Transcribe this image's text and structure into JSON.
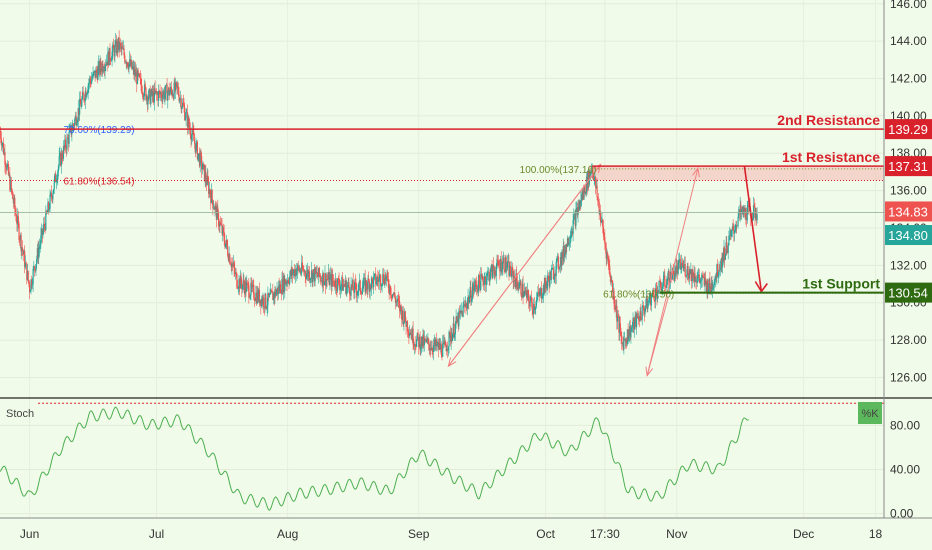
{
  "chart_data": {
    "type": "line",
    "x_dates": [
      "2020-05-25",
      "2020-06-01",
      "2020-06-08",
      "2020-06-15",
      "2020-06-22",
      "2020-06-29",
      "2020-07-06",
      "2020-07-13",
      "2020-07-20",
      "2020-07-27",
      "2020-08-03",
      "2020-08-10",
      "2020-08-17",
      "2020-08-24",
      "2020-08-31",
      "2020-09-07",
      "2020-09-14",
      "2020-09-21",
      "2020-09-28",
      "2020-10-05",
      "2020-10-12",
      "2020-10-19",
      "2020-10-26",
      "2020-11-02",
      "2020-11-09",
      "2020-11-16"
    ],
    "price_series": {
      "name": "",
      "values": [
        139.2,
        130.8,
        137.5,
        141.8,
        143.8,
        141.0,
        141.4,
        136.4,
        131.2,
        130.0,
        131.8,
        131.3,
        130.7,
        131.4,
        128.0,
        127.5,
        130.8,
        132.2,
        129.8,
        132.5,
        137.3,
        127.8,
        130.3,
        132.0,
        130.8,
        134.8
      ]
    },
    "stoch_series": {
      "name": "%K",
      "values": [
        42,
        15,
        58,
        88,
        92,
        80,
        85,
        55,
        15,
        8,
        18,
        22,
        28,
        20,
        55,
        35,
        18,
        45,
        72,
        55,
        85,
        20,
        15,
        45,
        40,
        90
      ]
    },
    "y_axis_price": {
      "ticks": [
        "146.00",
        "144.00",
        "142.00",
        "140.00",
        "138.00",
        "136.00",
        "134.00",
        "132.00",
        "130.00",
        "128.00",
        "126.00"
      ],
      "range": [
        124.9,
        146.2
      ]
    },
    "y_axis_stoch": {
      "ticks": [
        "80.00",
        "40.00",
        "0.00"
      ],
      "range": [
        -4,
        103
      ]
    },
    "x_axis": {
      "ticks": [
        "Jun",
        "Jul",
        "Aug",
        "Sep",
        "Oct",
        "17:30",
        "Nov",
        "Dec",
        "18"
      ]
    },
    "levels": [
      {
        "label": "2nd Resistance",
        "value": 139.29,
        "price_label": "139.29",
        "color": "#d9212b"
      },
      {
        "label": "1st Resistance",
        "value": 137.31,
        "price_label": "137.31",
        "color": "#d9212b"
      },
      {
        "label": "1st Support",
        "value": 130.54,
        "price_label": "130.54",
        "color": "#2e6b10"
      }
    ],
    "fib_labels": [
      {
        "text": "78.60%(139.29)",
        "value": 139.29,
        "color": "#2962ff"
      },
      {
        "text": "61.80%(136.54)",
        "value": 136.54,
        "color": "#d9212b"
      },
      {
        "text": "100.00%(137.16)",
        "value": 137.16,
        "color": "#6a8a2a"
      },
      {
        "text": "61.80%(130.50)",
        "value": 130.5,
        "color": "#6a8a2a"
      }
    ],
    "current_price_labels": [
      {
        "text": "134.83",
        "value": 134.83,
        "color": "#ef5350"
      },
      {
        "text": "134.80",
        "value": 134.8,
        "color": "#26a69a"
      }
    ],
    "indicator_label": "Stoch",
    "indicator_badge": "%K",
    "colors": {
      "up": "#26a69a",
      "down": "#ef5350",
      "resistance": "#d9212b",
      "support": "#2e6b10",
      "stoch_line": "#4caf50",
      "background": "#f1fbea"
    }
  }
}
